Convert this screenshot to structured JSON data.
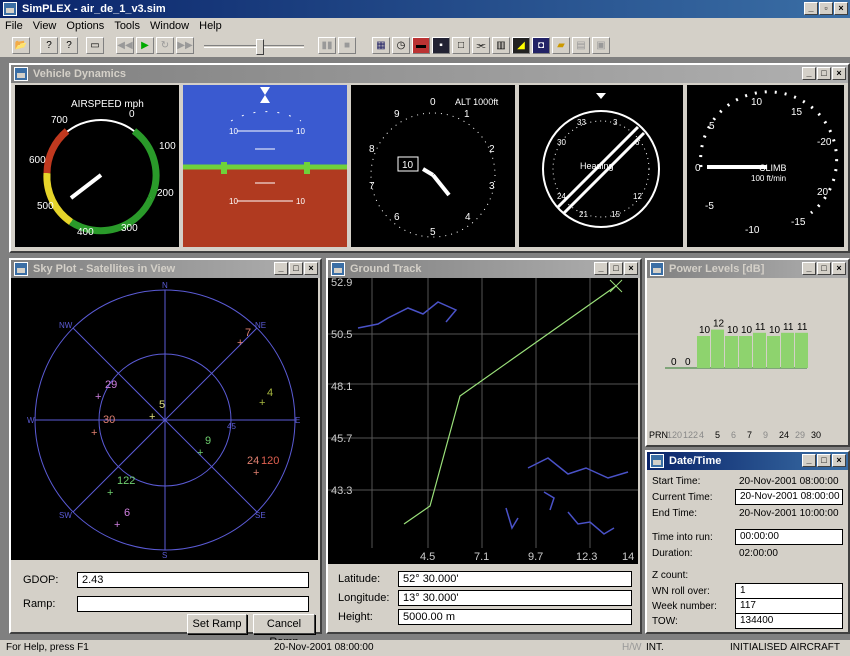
{
  "app": {
    "title": "SimPLEX - air_de_1_v3.sim",
    "menus": [
      "File",
      "View",
      "Options",
      "Tools",
      "Window",
      "Help"
    ]
  },
  "vehicle_dynamics": {
    "title": "Vehicle Dynamics",
    "airspeed": {
      "label": "AIRSPEED mph",
      "ticks": [
        "700",
        "0",
        "100",
        "200",
        "300",
        "400",
        "500",
        "600"
      ]
    },
    "attitude": {
      "pitch_ticks": [
        "10",
        "10",
        "10",
        "10"
      ]
    },
    "altimeter": {
      "label": "ALT 1000ft",
      "ticks": [
        "0",
        "1",
        "2",
        "3",
        "4",
        "5",
        "6",
        "7",
        "8",
        "9"
      ],
      "window": "10"
    },
    "heading": {
      "label": "Heading",
      "ticks": [
        "3",
        "6",
        "12",
        "15",
        "21",
        "24",
        "30",
        "33"
      ]
    },
    "climb": {
      "ticks": [
        "10",
        "15",
        "5",
        "-20",
        "0",
        "20",
        "-5",
        "-15",
        "-10",
        "-20"
      ],
      "label": "CLIMB",
      "unit": "100 ft/min"
    }
  },
  "sky_plot": {
    "title": "Sky Plot - Satellites in View",
    "directions": {
      "n": "N",
      "ne": "NE",
      "e": "E",
      "se": "SE",
      "s": "S",
      "sw": "SW",
      "w": "W",
      "nw": "NW"
    },
    "ring_label": "45",
    "sats": [
      "7",
      "4",
      "29",
      "30",
      "5",
      "9",
      "24",
      "120",
      "122",
      "6"
    ],
    "gdop_label": "GDOP:",
    "gdop_value": "2.43",
    "ramp_label": "Ramp:",
    "ramp_value": "",
    "set_ramp": "Set Ramp",
    "cancel_ramp": "Cancel Ramp"
  },
  "ground_track": {
    "title": "Ground Track",
    "y_ticks": [
      "52.9",
      "50.5",
      "48.1",
      "45.7",
      "43.3"
    ],
    "x_ticks": [
      "4.5",
      "7.1",
      "9.7",
      "12.3",
      "14"
    ],
    "lat_label": "Latitude:",
    "lat_value": "52° 30.000'",
    "lon_label": "Longitude:",
    "lon_value": "13° 30.000'",
    "height_label": "Height:",
    "height_value": "5000.00 m"
  },
  "power_levels": {
    "title": "Power Levels [dB]",
    "chart_data": {
      "type": "bar",
      "categories": [
        "120",
        "122",
        "4",
        "5",
        "6",
        "7",
        "9",
        "24",
        "29",
        "30"
      ],
      "values": [
        0,
        0,
        10,
        12,
        10,
        10,
        11,
        10,
        11,
        11
      ],
      "xlabel": "PRN"
    },
    "prn_label": "PRN",
    "prns": [
      "120",
      "122",
      "4",
      "5",
      "6",
      "7",
      "9",
      "24",
      "29",
      "30"
    ]
  },
  "date_time": {
    "title": "Date/Time",
    "start_label": "Start Time:",
    "start_value": "20-Nov-2001 08:00:00",
    "current_label": "Current Time:",
    "current_value": "20-Nov-2001 08:00:00",
    "end_label": "End Time:",
    "end_value": "20-Nov-2001 10:00:00",
    "into_label": "Time into run:",
    "into_value": "00:00:00",
    "duration_label": "Duration:",
    "duration_value": "02:00:00",
    "zcount_label": "Z count:",
    "wn_label": "WN roll over:",
    "wn_value": "1",
    "week_label": "Week number:",
    "week_value": "117",
    "tow_label": "TOW:",
    "tow_value": "134400"
  },
  "status": {
    "help": "For Help, press F1",
    "time": "20-Nov-2001 08:00:00",
    "hw": "H/W",
    "int": "INT.",
    "state": "INITIALISED",
    "mode": "AIRCRAFT"
  }
}
